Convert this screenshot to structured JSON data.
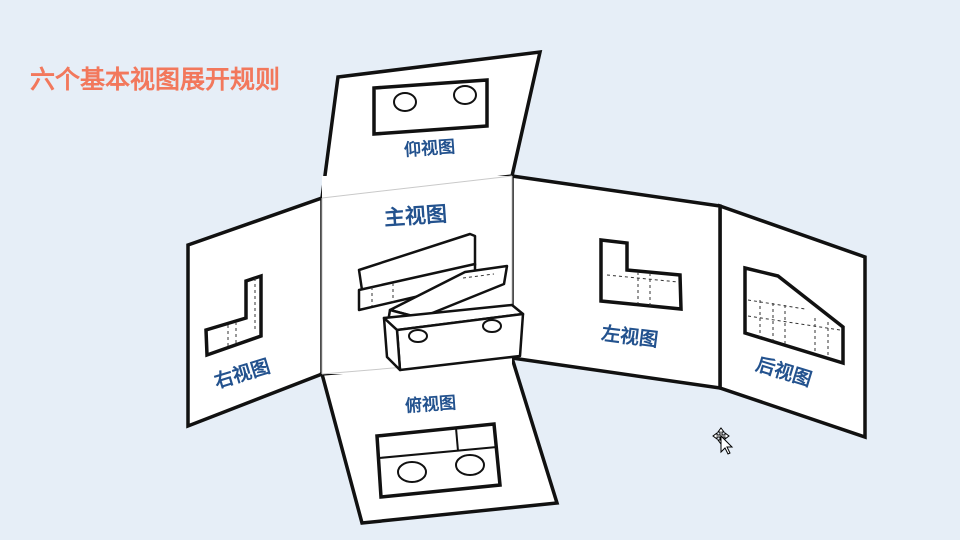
{
  "title": "六个基本视图展开规则",
  "views": {
    "front": "主视图",
    "top": "俯视图",
    "bottom": "仰视图",
    "right": "右视图",
    "left": "左视图",
    "rear": "后视图"
  },
  "colors": {
    "title": "#f2785c",
    "label": "#23528e",
    "background": "#e6eef7"
  },
  "icons": [
    "move-cursor-icon"
  ]
}
